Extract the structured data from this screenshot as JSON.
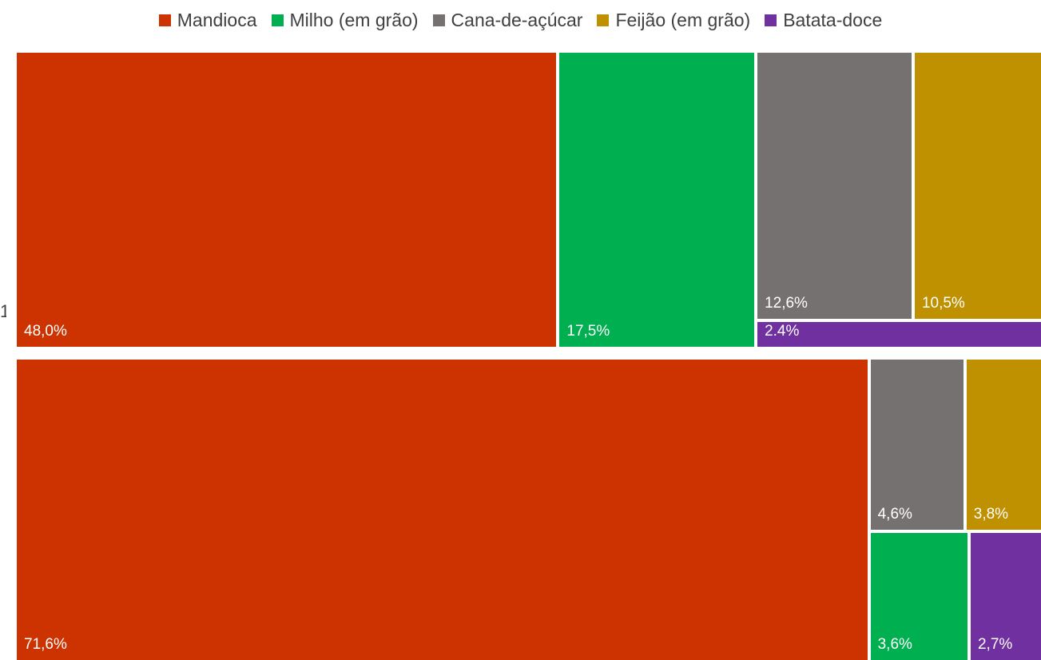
{
  "legend": {
    "items": [
      {
        "label": "Mandioca",
        "color": "#CC3300"
      },
      {
        "label": "Milho (em grão)",
        "color": "#00B050"
      },
      {
        "label": "Cana-de-açúcar",
        "color": "#767171"
      },
      {
        "label": "Feijão (em grão)",
        "color": "#BF9000"
      },
      {
        "label": "Batata-doce",
        "color": "#7030A0"
      }
    ]
  },
  "edge_label": "1",
  "chart_data": {
    "type": "treemap",
    "series": [
      {
        "name": "",
        "values": [
          {
            "category": "Mandioca",
            "value": 48.0,
            "label": "48,0%"
          },
          {
            "category": "Milho (em grão)",
            "value": 17.5,
            "label": "17,5%"
          },
          {
            "category": "Cana-de-açúcar",
            "value": 12.6,
            "label": "12,6%"
          },
          {
            "category": "Feijão (em grão)",
            "value": 10.5,
            "label": "10,5%"
          },
          {
            "category": "Batata-doce",
            "value": 2.4,
            "label": "2.4%"
          }
        ]
      },
      {
        "name": "",
        "values": [
          {
            "category": "Mandioca",
            "value": 71.6,
            "label": "71,6%"
          },
          {
            "category": "Cana-de-açúcar",
            "value": 4.6,
            "label": "4,6%"
          },
          {
            "category": "Feijão (em grão)",
            "value": 3.8,
            "label": "3,8%"
          },
          {
            "category": "Milho (em grão)",
            "value": 3.6,
            "label": "3,6%"
          },
          {
            "category": "Batata-doce",
            "value": 2.7,
            "label": "2,7%"
          }
        ]
      }
    ]
  }
}
